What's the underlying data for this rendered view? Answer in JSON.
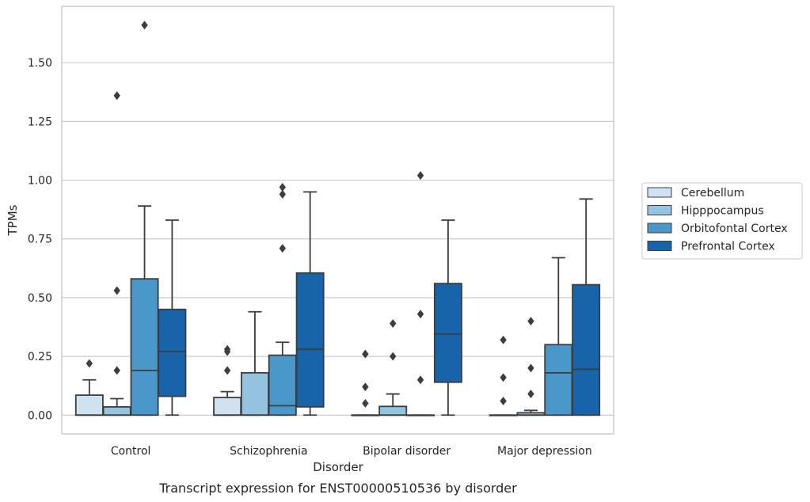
{
  "chart_data": {
    "type": "box",
    "title": "Transcript expression for ENST00000510536 by disorder",
    "xlabel": "Disorder",
    "ylabel": "TPMs",
    "ylim": [
      -0.08,
      1.74
    ],
    "yticks": [
      "0.00",
      "0.25",
      "0.50",
      "0.75",
      "1.00",
      "1.25",
      "1.50"
    ],
    "ytick_values": [
      0,
      0.25,
      0.5,
      0.75,
      1.0,
      1.25,
      1.5
    ],
    "grid": "horizontal",
    "legend_position": "right",
    "categories": [
      "Control",
      "Schizophrenia",
      "Bipolar disorder",
      "Major depression"
    ],
    "series": [
      {
        "name": "Cerebellum",
        "color": "#d0e1f2",
        "boxes": [
          {
            "q1": 0.0,
            "median": 0.0,
            "q3": 0.085,
            "whisker_low": 0.0,
            "whisker_high": 0.15,
            "outliers": [
              0.22
            ]
          },
          {
            "q1": 0.0,
            "median": 0.0,
            "q3": 0.075,
            "whisker_low": 0.0,
            "whisker_high": 0.1,
            "outliers": [
              0.19,
              0.27,
              0.28
            ]
          },
          {
            "q1": 0.0,
            "median": 0.0,
            "q3": 0.0,
            "whisker_low": 0.0,
            "whisker_high": 0.0,
            "outliers": [
              0.05,
              0.12,
              0.26
            ]
          },
          {
            "q1": 0.0,
            "median": 0.0,
            "q3": 0.0,
            "whisker_low": 0.0,
            "whisker_high": 0.0,
            "outliers": [
              0.06,
              0.16,
              0.32
            ]
          }
        ]
      },
      {
        "name": "Hipppocampus",
        "color": "#94c4df",
        "boxes": [
          {
            "q1": 0.0,
            "median": 0.0,
            "q3": 0.035,
            "whisker_low": 0.0,
            "whisker_high": 0.07,
            "outliers": [
              0.19,
              0.53,
              1.36
            ]
          },
          {
            "q1": 0.0,
            "median": 0.0,
            "q3": 0.18,
            "whisker_low": 0.0,
            "whisker_high": 0.44,
            "outliers": []
          },
          {
            "q1": 0.0,
            "median": 0.0,
            "q3": 0.037,
            "whisker_low": 0.0,
            "whisker_high": 0.09,
            "outliers": [
              0.25,
              0.39
            ]
          },
          {
            "q1": 0.0,
            "median": 0.0,
            "q3": 0.01,
            "whisker_low": 0.0,
            "whisker_high": 0.02,
            "outliers": [
              0.09,
              0.2,
              0.4
            ]
          }
        ]
      },
      {
        "name": "Orbitofontal Cortex",
        "color": "#4a98c9",
        "boxes": [
          {
            "q1": 0.0,
            "median": 0.19,
            "q3": 0.58,
            "whisker_low": 0.0,
            "whisker_high": 0.89,
            "outliers": [
              1.66
            ]
          },
          {
            "q1": 0.0,
            "median": 0.04,
            "q3": 0.255,
            "whisker_low": 0.0,
            "whisker_high": 0.31,
            "outliers": [
              0.71,
              0.94,
              0.97
            ]
          },
          {
            "q1": 0.0,
            "median": 0.0,
            "q3": 0.0,
            "whisker_low": 0.0,
            "whisker_high": 0.0,
            "outliers": [
              0.15,
              0.43,
              1.02
            ]
          },
          {
            "q1": 0.0,
            "median": 0.18,
            "q3": 0.3,
            "whisker_low": 0.0,
            "whisker_high": 0.67,
            "outliers": []
          }
        ]
      },
      {
        "name": "Prefrontal Cortex",
        "color": "#1764ab",
        "boxes": [
          {
            "q1": 0.08,
            "median": 0.27,
            "q3": 0.45,
            "whisker_low": 0.0,
            "whisker_high": 0.83,
            "outliers": []
          },
          {
            "q1": 0.035,
            "median": 0.28,
            "q3": 0.605,
            "whisker_low": 0.0,
            "whisker_high": 0.95,
            "outliers": []
          },
          {
            "q1": 0.14,
            "median": 0.345,
            "q3": 0.56,
            "whisker_low": 0.0,
            "whisker_high": 0.83,
            "outliers": []
          },
          {
            "q1": 0.0,
            "median": 0.195,
            "q3": 0.555,
            "whisker_low": 0.0,
            "whisker_high": 0.92,
            "outliers": []
          }
        ]
      }
    ]
  }
}
